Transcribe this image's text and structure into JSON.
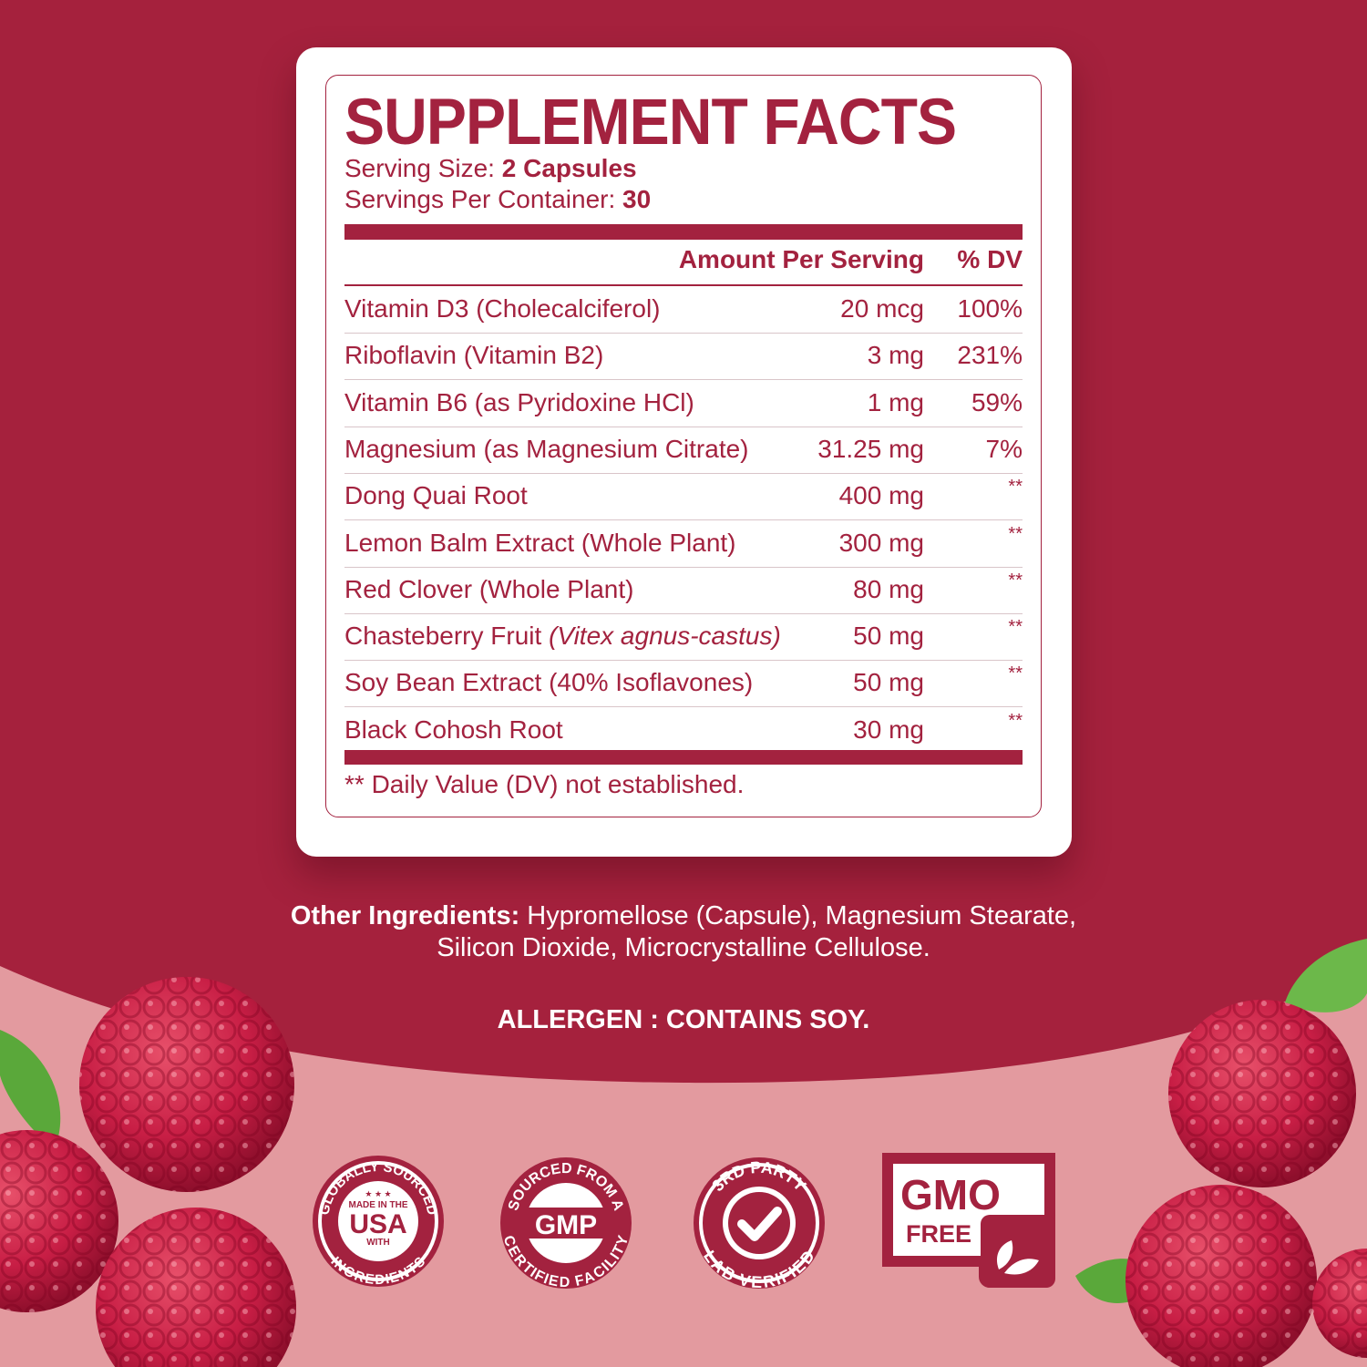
{
  "colors": {
    "background_dark": "#a5213d",
    "background_light": "#e39a9f",
    "label": "#a3223f",
    "card": "#ffffff"
  },
  "facts": {
    "title": "SUPPLEMENT FACTS",
    "serving_size_label": "Serving Size:",
    "serving_size_value": "2 Capsules",
    "servings_label": "Servings Per Container:",
    "servings_value": "30",
    "header_amount": "Amount Per Serving",
    "header_dv": "% DV",
    "rows": [
      {
        "name": "Vitamin D3 (Cholecalciferol)",
        "amount": "20 mcg",
        "dv": "100%"
      },
      {
        "name": "Riboflavin (Vitamin B2)",
        "amount": "3 mg",
        "dv": "231%"
      },
      {
        "name": "Vitamin B6 (as Pyridoxine HCl)",
        "amount": "1 mg",
        "dv": "59%"
      },
      {
        "name": "Magnesium (as Magnesium Citrate)",
        "amount": "31.25 mg",
        "dv": "7%"
      },
      {
        "name": "Dong Quai Root",
        "amount": "400 mg",
        "dv": "**"
      },
      {
        "name": "Lemon Balm Extract (Whole Plant)",
        "amount": "300 mg",
        "dv": "**"
      },
      {
        "name": "Red Clover (Whole Plant)",
        "amount": "80 mg",
        "dv": "**"
      },
      {
        "name": "Chasteberry Fruit",
        "name_italic": "(Vitex agnus-castus)",
        "amount": "50 mg",
        "dv": "**"
      },
      {
        "name": "Soy Bean Extract (40% Isoflavones)",
        "amount": "50 mg",
        "dv": "**"
      },
      {
        "name": "Black Cohosh Root",
        "amount": "30 mg",
        "dv": "**"
      }
    ],
    "footnote": "** Daily Value (DV) not established."
  },
  "other_ingredients": {
    "label": "Other Ingredients:",
    "text": " Hypromellose (Capsule), Magnesium Stearate, Silicon Dioxide, Microcrystalline Cellulose."
  },
  "allergen": "ALLERGEN : CONTAINS SOY.",
  "badges": {
    "usa": {
      "top": "GLOBALLY SOURCED",
      "line1": "MADE IN THE",
      "main": "USA",
      "line2": "WITH",
      "bottom": "INGREDIENTS",
      "stars": "★ ★ ★"
    },
    "gmp": {
      "top": "SOURCED FROM A",
      "main": "GMP",
      "bottom": "CERTIFIED FACILITY"
    },
    "lab": {
      "top": "3RD PARTY",
      "bottom": "LAB VERIFIED",
      "icon": "checkmark-icon"
    },
    "gmo": {
      "line1": "GMO",
      "line2": "FREE",
      "icon": "leaf-icon"
    }
  }
}
